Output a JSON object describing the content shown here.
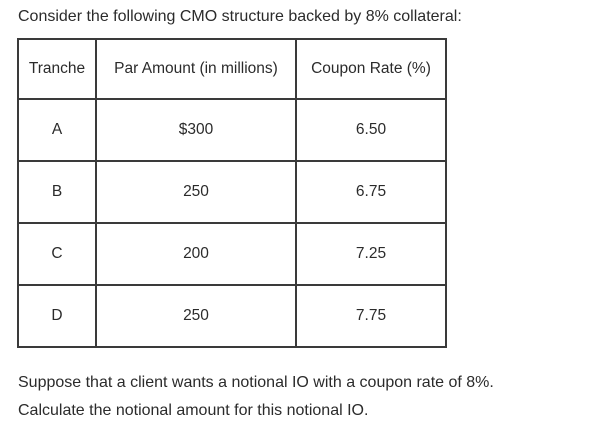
{
  "intro": "Consider the following CMO structure backed by 8% collateral:",
  "table": {
    "headers": [
      "Tranche",
      "Par Amount (in millions)",
      "Coupon Rate (%)"
    ],
    "rows": [
      [
        "A",
        "$300",
        "6.50"
      ],
      [
        "B",
        "250",
        "6.75"
      ],
      [
        "C",
        "200",
        "7.25"
      ],
      [
        "D",
        "250",
        "7.75"
      ]
    ]
  },
  "footer": {
    "line1": "Suppose that a client wants a notional IO with a coupon rate of 8%.",
    "line2": "Calculate the notional amount for this notional IO."
  }
}
